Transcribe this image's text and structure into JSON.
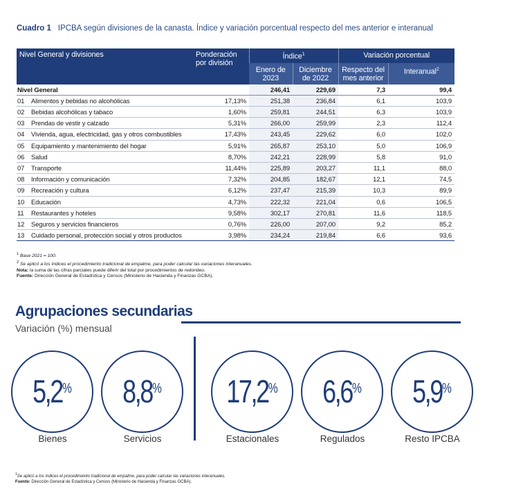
{
  "caption": {
    "label": "Cuadro 1",
    "text": "IPCBA según divisiones de la canasta. Índice y variación porcentual respecto del mes anterior e interanual"
  },
  "table": {
    "headers": {
      "level": "Nivel General y divisiones",
      "ponderacion": "Ponderación por división",
      "indice": "Índice",
      "indice_sup": "1",
      "indice_enero": "Enero de 2023",
      "indice_dic": "Diciembre de 2022",
      "variacion": "Variación porcentual",
      "var_mes": "Respecto del mes anterior",
      "var_inter": "Interanual",
      "var_inter_sup": "2"
    },
    "total": {
      "name": "Nivel General",
      "pond": "",
      "enero": "246,41",
      "dic": "229,69",
      "mes": "7,3",
      "inter": "99,4"
    },
    "rows": [
      {
        "code": "01",
        "name": "Alimentos y bebidas no alcohólicas",
        "pond": "17,13%",
        "enero": "251,38",
        "dic": "236,84",
        "mes": "6,1",
        "inter": "103,9"
      },
      {
        "code": "02",
        "name": "Bebidas alcohólicas y tabaco",
        "pond": "1,60%",
        "enero": "259,81",
        "dic": "244,51",
        "mes": "6,3",
        "inter": "103,9"
      },
      {
        "code": "03",
        "name": "Prendas de vestir y calzado",
        "pond": "5,31%",
        "enero": "266,00",
        "dic": "259,99",
        "mes": "2,3",
        "inter": "112,4"
      },
      {
        "code": "04",
        "name": "Vivienda, agua, electricidad, gas y otros combustibles",
        "pond": "17,43%",
        "enero": "243,45",
        "dic": "229,62",
        "mes": "6,0",
        "inter": "102,0"
      },
      {
        "code": "05",
        "name": "Equipamiento y mantenimiento del hogar",
        "pond": "5,91%",
        "enero": "265,87",
        "dic": "253,10",
        "mes": "5,0",
        "inter": "106,9"
      },
      {
        "code": "06",
        "name": "Salud",
        "pond": "8,70%",
        "enero": "242,21",
        "dic": "228,99",
        "mes": "5,8",
        "inter": "91,0"
      },
      {
        "code": "07",
        "name": "Transporte",
        "pond": "11,44%",
        "enero": "225,89",
        "dic": "203,27",
        "mes": "11,1",
        "inter": "88,0"
      },
      {
        "code": "08",
        "name": "Información y comunicación",
        "pond": "7,32%",
        "enero": "204,85",
        "dic": "182,67",
        "mes": "12,1",
        "inter": "74,5"
      },
      {
        "code": "09",
        "name": "Recreación y cultura",
        "pond": "6,12%",
        "enero": "237,47",
        "dic": "215,39",
        "mes": "10,3",
        "inter": "89,9"
      },
      {
        "code": "10",
        "name": "Educación",
        "pond": "4,73%",
        "enero": "222,32",
        "dic": "221,04",
        "mes": "0,6",
        "inter": "106,5"
      },
      {
        "code": "11",
        "name": "Restaurantes y hoteles",
        "pond": "9,58%",
        "enero": "302,17",
        "dic": "270,81",
        "mes": "11,6",
        "inter": "118,5"
      },
      {
        "code": "12",
        "name": "Seguros y servicios financieros",
        "pond": "0,76%",
        "enero": "226,00",
        "dic": "207,00",
        "mes": "9,2",
        "inter": "85,2"
      },
      {
        "code": "13",
        "name": "Cuidado personal, protección social y otros productos",
        "pond": "3,98%",
        "enero": "234,24",
        "dic": "219,84",
        "mes": "6,6",
        "inter": "93,6"
      }
    ]
  },
  "notes": {
    "n1_sup": "1",
    "n1": "Base 2021 = 100.",
    "n2_sup": "2",
    "n2": "Se aplicó a los índices el procedimiento tradicional de empalme, para poder calcular las variaciones interanuales.",
    "nota_label": "Nota:",
    "nota": "la suma de las cifras parciales puede diferir del total por procedimientos de redondeo.",
    "fuente_label": "Fuente:",
    "fuente": "Dirección General de Estadística y Censos (Ministerio de Hacienda y Finanzas GCBA)."
  },
  "secondary": {
    "title": "Agrupaciones secundarias",
    "subtitle": "Variación (%) mensual",
    "percent_symbol": "%",
    "items": [
      {
        "value": "5,2",
        "label": "Bienes"
      },
      {
        "value": "8,8",
        "label": "Servicios"
      },
      {
        "value": "17,2",
        "label": "Estacionales"
      },
      {
        "value": "6,6",
        "label": "Regulados"
      },
      {
        "value": "5,9",
        "label": "Resto IPCBA"
      }
    ]
  },
  "footnotes": {
    "n1_sup": "1",
    "n1": "Se aplicó a los índices el procedimiento tradicional de empalme, para poder calcular las variaciones interanuales.",
    "fuente_label": "Fuente:",
    "fuente": "Dirección General de Estadística y Censos (Ministerio de Hacienda y Finanzas GCBA)."
  },
  "colors": {
    "navy": "#1f3d7a",
    "header_sub": "#3c5a96",
    "shade": "#eef1f6"
  }
}
